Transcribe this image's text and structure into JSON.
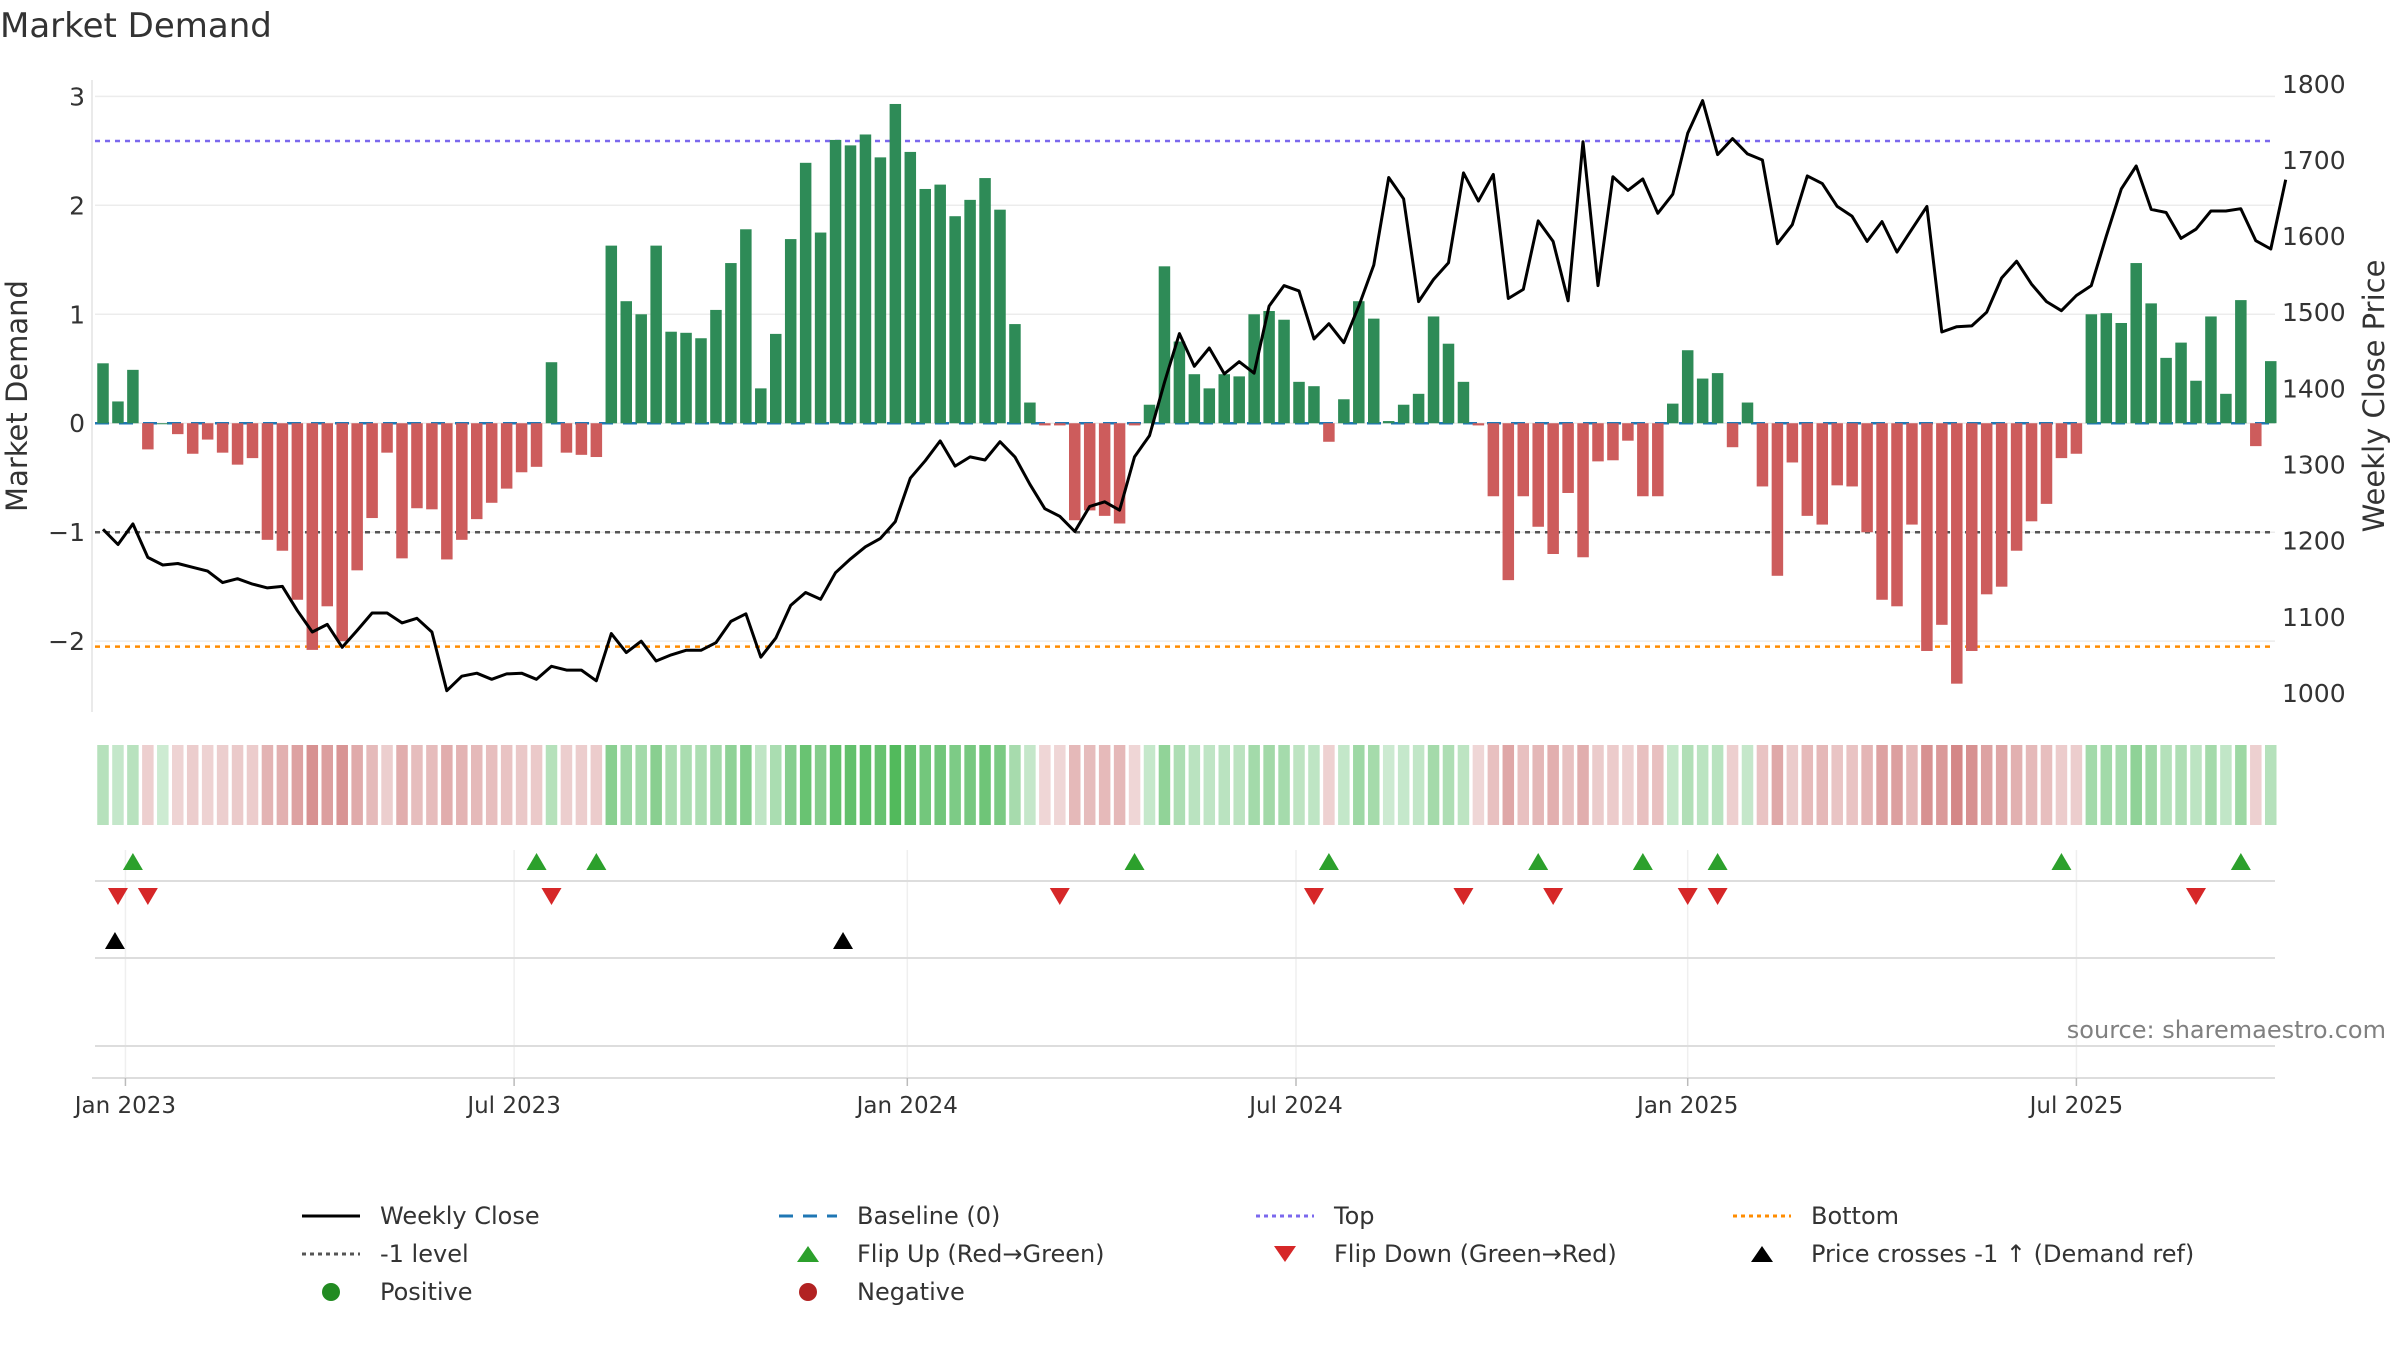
{
  "chart_data": {
    "type": "bar",
    "title": "Market Demand",
    "source": "source: sharemaestro.com",
    "ylabel": "Market Demand",
    "y2label": "Weekly Close Price",
    "ylim": [
      -2.65,
      3.15
    ],
    "y2lim": [
      975,
      1805
    ],
    "yticks": [
      {
        "label": "3",
        "value": 3
      },
      {
        "label": "2",
        "value": 2
      },
      {
        "label": "1",
        "value": 1
      },
      {
        "label": "0",
        "value": 0
      },
      {
        "label": "−1",
        "value": -1
      },
      {
        "label": "−2",
        "value": -2
      }
    ],
    "y2ticks": [
      {
        "label": "1800",
        "value": 1800
      },
      {
        "label": "1700",
        "value": 1700
      },
      {
        "label": "1600",
        "value": 1600
      },
      {
        "label": "1500",
        "value": 1500
      },
      {
        "label": "1400",
        "value": 1400
      },
      {
        "label": "1300",
        "value": 1300
      },
      {
        "label": "1200",
        "value": 1200
      },
      {
        "label": "1100",
        "value": 1100
      },
      {
        "label": "1000",
        "value": 1000
      }
    ],
    "xticks": [
      {
        "label": "Jan 2023",
        "week": 1.5
      },
      {
        "label": "Jul 2023",
        "week": 27.5
      },
      {
        "label": "Jan 2024",
        "week": 53.8
      },
      {
        "label": "Jul 2024",
        "week": 79.8
      },
      {
        "label": "Jan 2025",
        "week": 106
      },
      {
        "label": "Jul 2025",
        "week": 132
      }
    ],
    "reference_lines": {
      "top": 2.59,
      "bottom": -2.05,
      "minus_one": -1,
      "baseline": 0
    },
    "series": [
      {
        "name": "Market Demand",
        "values": [
          0.55,
          0.2,
          0.49,
          -0.24,
          0,
          -0.1,
          -0.28,
          -0.15,
          -0.27,
          -0.38,
          -0.32,
          -1.07,
          -1.17,
          -1.62,
          -2.08,
          -1.68,
          -2.0,
          -1.35,
          -0.87,
          -0.27,
          -1.24,
          -0.78,
          -0.79,
          -1.25,
          -1.07,
          -0.88,
          -0.73,
          -0.6,
          -0.45,
          -0.4,
          0.56,
          -0.27,
          -0.29,
          -0.31,
          1.63,
          1.12,
          1.0,
          1.63,
          0.84,
          0.83,
          0.78,
          1.04,
          1.47,
          1.78,
          0.32,
          0.82,
          1.69,
          2.39,
          1.75,
          2.6,
          2.55,
          2.65,
          2.44,
          2.93,
          2.49,
          2.15,
          2.19,
          1.9,
          2.05,
          2.25,
          1.96,
          0.91,
          0.19,
          -0.02,
          -0.02,
          -0.89,
          -0.8,
          -0.85,
          -0.92,
          -0.02,
          0.17,
          1.44,
          0.75,
          0.45,
          0.32,
          0.45,
          0.43,
          1.0,
          1.03,
          0.95,
          0.38,
          0.34,
          -0.17,
          0.22,
          1.12,
          0.96,
          0.02,
          0.17,
          0.27,
          0.98,
          0.73,
          0.38,
          -0.02,
          -0.67,
          -1.44,
          -0.67,
          -0.95,
          -1.2,
          -0.64,
          -1.23,
          -0.35,
          -0.34,
          -0.16,
          -0.67,
          -0.67,
          0.18,
          0.67,
          0.41,
          0.46,
          -0.22,
          0.19,
          -0.58,
          -1.4,
          -0.36,
          -0.85,
          -0.93,
          -0.57,
          -0.58,
          -1.0,
          -1.62,
          -1.68,
          -0.93,
          -2.09,
          -1.85,
          -2.39,
          -2.09,
          -1.57,
          -1.5,
          -1.17,
          -0.9,
          -0.74,
          -0.32,
          -0.28,
          1.0,
          1.01,
          0.92,
          1.47,
          1.1,
          0.6,
          0.74,
          0.39,
          0.98,
          0.27,
          1.13,
          -0.21,
          0.57
        ]
      },
      {
        "name": "Weekly Close",
        "axis": "right",
        "values": [
          1215,
          1195,
          1222,
          1178,
          1168,
          1170,
          1165,
          1160,
          1145,
          1150,
          1143,
          1138,
          1140,
          1108,
          1080,
          1090,
          1060,
          1082,
          1105,
          1105,
          1092,
          1098,
          1080,
          1003,
          1022,
          1026,
          1018,
          1025,
          1026,
          1018,
          1035,
          1030,
          1030,
          1016,
          1078,
          1053,
          1068,
          1042,
          1050,
          1056,
          1056,
          1066,
          1094,
          1104,
          1047,
          1072,
          1115,
          1132,
          1123,
          1158,
          1176,
          1192,
          1203,
          1225,
          1282,
          1305,
          1331,
          1298,
          1310,
          1306,
          1330,
          1310,
          1274,
          1242,
          1232,
          1212,
          1245,
          1251,
          1240,
          1310,
          1338,
          1408,
          1472,
          1429,
          1453,
          1419,
          1435,
          1420,
          1508,
          1535,
          1528,
          1465,
          1485,
          1460,
          1508,
          1562,
          1677,
          1649,
          1514,
          1543,
          1565,
          1683,
          1646,
          1681,
          1518,
          1530,
          1620,
          1593,
          1515,
          1724,
          1535,
          1678,
          1660,
          1675,
          1630,
          1655,
          1735,
          1778,
          1707,
          1728,
          1708,
          1700,
          1590,
          1615,
          1679,
          1669,
          1639,
          1626,
          1593,
          1619,
          1579,
          1609,
          1639,
          1474,
          1481,
          1482,
          1500,
          1545,
          1567,
          1537,
          1514,
          1502,
          1522,
          1535,
          1600,
          1662,
          1692,
          1635,
          1631,
          1597,
          1609,
          1633,
          1633,
          1636,
          1594,
          1583,
          1674
        ]
      }
    ],
    "signals": {
      "flip_up_weeks": [
        2,
        29,
        33,
        69,
        82,
        96,
        103,
        108,
        131,
        143
      ],
      "flip_down_weeks": [
        1,
        3,
        30,
        64,
        81,
        91,
        97,
        106,
        108,
        140
      ],
      "price_cross_weeks": [
        0.8,
        49.5
      ]
    }
  },
  "legend": [
    {
      "label": "Weekly Close",
      "symbol": "line-black"
    },
    {
      "label": "Baseline (0)",
      "symbol": "dash-blue"
    },
    {
      "label": "Top",
      "symbol": "dot-purple"
    },
    {
      "label": "Bottom",
      "symbol": "dot-orange"
    },
    {
      "label": "-1 level",
      "symbol": "dot-gray"
    },
    {
      "label": "Flip Up (Red→Green)",
      "symbol": "triangle-up-green"
    },
    {
      "label": "Flip Down (Green→Red)",
      "symbol": "triangle-down-red"
    },
    {
      "label": "Price crosses -1 ↑ (Demand ref)",
      "symbol": "triangle-up-black"
    },
    {
      "label": "Positive",
      "symbol": "circle-green"
    },
    {
      "label": "Negative",
      "symbol": "circle-red"
    }
  ],
  "colors": {
    "positive": "#2e8b57",
    "negative": "#cd5c5c",
    "price": "#000000",
    "baseline": "#1f77b4",
    "top": "#7b68ee",
    "bottom": "#ff8c00",
    "minus_one": "#555555",
    "flip_up": "#2ca02c",
    "flip_down": "#d62728",
    "positive_dot": "#228b22",
    "negative_dot": "#b22222"
  }
}
